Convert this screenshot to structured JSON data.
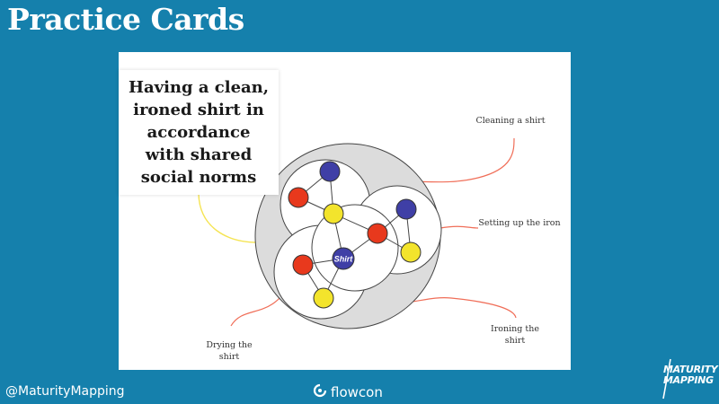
{
  "slide": {
    "title": "Practice Cards"
  },
  "card": {
    "caption": "Having a clean, ironed shirt in accordance with shared social norms",
    "center_node": "Shirt",
    "labels": {
      "cleaning": "Cleaning a shirt",
      "setting_up": "Setting up the iron",
      "ironing": "Ironing the shirt",
      "drying": "Drying the shirt"
    }
  },
  "colors": {
    "background": "#1580ac",
    "red_node": "#e8391d",
    "blue_node": "#3f3fa6",
    "yellow_node": "#f3e42c",
    "connector_red": "#f06e58",
    "connector_yellow": "#f5e453",
    "outer_circle": "#dcdcdc"
  },
  "footer": {
    "handle": "@MaturityMapping",
    "logo_text": "flowcon",
    "logo_icon": "flowcon-swirl-icon",
    "brand_line1": "MATURITY",
    "brand_line2": "MAPPING"
  }
}
